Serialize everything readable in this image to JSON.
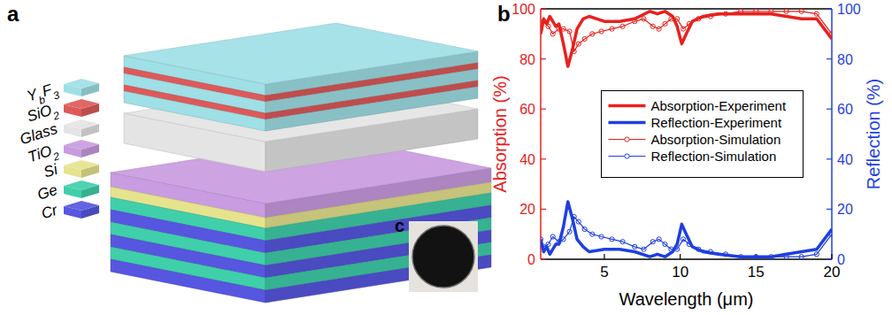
{
  "chart_data": {
    "type": "line",
    "panel_label": "b",
    "x_label": "Wavelength (μm)",
    "y_label": "Absorption (%)",
    "y2_label": "Reflection (%)",
    "xlim": [
      0.8,
      20
    ],
    "xticks": [
      5,
      10,
      15,
      20
    ],
    "ylim": [
      0,
      100
    ],
    "yticks": [
      0,
      20,
      40,
      60,
      80,
      100
    ],
    "y2lim": [
      0,
      100
    ],
    "y2ticks": [
      0,
      20,
      40,
      60,
      80,
      100
    ],
    "legend": "center",
    "series": [
      {
        "name": "Absorption-Experiment",
        "color": "#e8211d",
        "axis": "y",
        "marker": "none",
        "line_style": "solid",
        "x": [
          0.8,
          1.0,
          1.2,
          1.4,
          1.6,
          1.8,
          2.0,
          2.3,
          2.6,
          2.9,
          3.2,
          3.6,
          4.0,
          5,
          6,
          7,
          8,
          8.5,
          9,
          9.5,
          9.8,
          10.1,
          10.4,
          10.8,
          11.5,
          12.5,
          14,
          16,
          17,
          18,
          19,
          20
        ],
        "values": [
          90,
          96,
          94,
          97,
          95,
          93,
          94,
          86,
          77,
          84,
          92,
          96,
          97,
          95,
          95,
          96,
          99,
          98,
          99,
          97,
          93,
          86,
          90,
          95,
          97,
          98,
          98,
          98,
          97,
          96,
          96,
          88
        ]
      },
      {
        "name": "Reflection-Experiment",
        "color": "#1f3fe0",
        "axis": "y2",
        "marker": "none",
        "line_style": "solid",
        "x": [
          0.8,
          1.0,
          1.2,
          1.4,
          1.6,
          1.8,
          2.0,
          2.3,
          2.6,
          2.9,
          3.2,
          3.6,
          4.0,
          5,
          6,
          7,
          8,
          8.5,
          9,
          9.5,
          9.8,
          10.1,
          10.4,
          10.8,
          11.5,
          12.5,
          14,
          16,
          17,
          18,
          19,
          20
        ],
        "values": [
          8,
          3,
          5,
          2,
          4,
          6,
          6,
          13,
          23,
          16,
          8,
          5,
          3,
          4,
          4,
          3,
          1,
          2,
          1,
          3,
          6,
          14,
          10,
          5,
          3,
          2,
          1,
          1,
          2,
          3,
          4,
          12
        ]
      },
      {
        "name": "Absorption-Simulation",
        "color": "#e8211d",
        "axis": "y",
        "marker": "circle",
        "line_style": "solid",
        "x": [
          0.8,
          1.0,
          1.3,
          1.6,
          2.0,
          2.3,
          2.7,
          3.0,
          3.3,
          3.7,
          4.2,
          4.8,
          5.5,
          6.2,
          7.0,
          7.6,
          8.2,
          8.6,
          9.0,
          9.4,
          9.8,
          10.2,
          10.6,
          11.2,
          12,
          13,
          14,
          15,
          16,
          17,
          18,
          19,
          20
        ],
        "values": [
          92,
          95,
          93,
          90,
          92,
          92,
          91,
          83,
          86,
          88,
          90,
          91,
          92,
          93,
          95,
          96,
          93,
          92,
          94,
          96,
          96,
          92,
          94,
          96,
          97,
          98,
          99,
          99,
          99,
          99,
          99,
          98,
          90
        ]
      },
      {
        "name": "Reflection-Simulation",
        "color": "#1f3fe0",
        "axis": "y2",
        "marker": "circle",
        "line_style": "solid",
        "x": [
          0.8,
          1.0,
          1.3,
          1.6,
          2.0,
          2.3,
          2.7,
          3.0,
          3.3,
          3.7,
          4.2,
          4.8,
          5.5,
          6.2,
          7.0,
          7.6,
          8.2,
          8.6,
          9.0,
          9.4,
          9.8,
          10.2,
          10.6,
          11.2,
          12,
          13,
          14,
          15,
          16,
          17,
          18,
          19,
          20
        ],
        "values": [
          8,
          5,
          6,
          9,
          7,
          8,
          11,
          17,
          15,
          12,
          10,
          9,
          8,
          7,
          5,
          4,
          7,
          8,
          6,
          4,
          4,
          8,
          6,
          4,
          3,
          2,
          1,
          1,
          1,
          1,
          1,
          2,
          10
        ]
      }
    ]
  },
  "diagram": {
    "panel_label": "a",
    "layers": [
      {
        "label": [
          {
            "t": "Y"
          },
          {
            "t": "b",
            "sub": true
          },
          {
            "t": "F"
          },
          {
            "t": "3",
            "sub": true
          }
        ],
        "color": "#9fdfe6"
      },
      {
        "label": [
          {
            "t": "SiO"
          },
          {
            "t": "2",
            "sub": true
          }
        ],
        "color": "#de5a5a"
      },
      {
        "label": [
          {
            "t": "Glass"
          }
        ],
        "color": "#e4e4e4"
      },
      {
        "label": [
          {
            "t": "TiO"
          },
          {
            "t": "2",
            "sub": true
          }
        ],
        "color": "#c99be0"
      },
      {
        "label": [
          {
            "t": "Si"
          }
        ],
        "color": "#e6e38e"
      },
      {
        "label": [
          {
            "t": "Ge"
          }
        ],
        "color": "#3fcfaa"
      },
      {
        "label": [
          {
            "t": "Cr"
          }
        ],
        "color": "#5656e0"
      }
    ],
    "stacks": [
      [
        0,
        1,
        0,
        1,
        0
      ],
      [
        2
      ],
      [
        3,
        4,
        5,
        6,
        5,
        6,
        5,
        6
      ]
    ]
  },
  "photo": {
    "panel_label": "c"
  }
}
